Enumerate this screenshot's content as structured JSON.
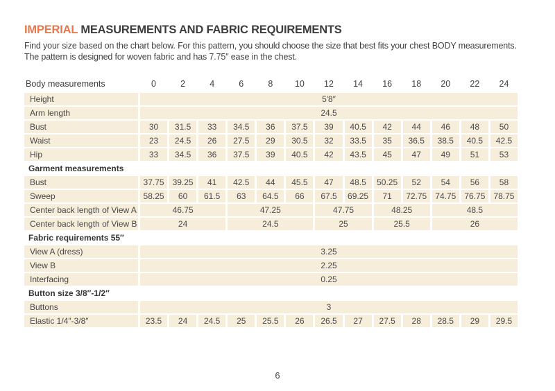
{
  "page": {
    "title_highlight": "IMPERIAL",
    "title_rest": " MEASUREMENTS AND FABRIC REQUIREMENTS",
    "intro_lines": [
      "Find your size based on the chart below. For this pattern, you should choose the size that best fits your chest BODY measurements.",
      "The pattern is designed for woven fabric and has 7.75″ ease in the chest."
    ],
    "page_number": "6"
  },
  "colors": {
    "accent_orange": "#e8794e",
    "cell_beige": "#f6edda",
    "text_dark": "#3d3d3d",
    "text_body": "#4a4a4a"
  },
  "table": {
    "header": {
      "label": "Body measurements",
      "sizes": [
        "0",
        "2",
        "4",
        "6",
        "8",
        "10",
        "12",
        "14",
        "16",
        "18",
        "20",
        "22",
        "24"
      ]
    },
    "rows": [
      {
        "type": "merged",
        "label": "Height",
        "groups": [
          {
            "span": 13,
            "value": "5′8″"
          }
        ]
      },
      {
        "type": "merged",
        "label": "Arm length",
        "groups": [
          {
            "span": 13,
            "value": "24.5"
          }
        ]
      },
      {
        "type": "cells",
        "label": "Bust",
        "values": [
          "30",
          "31.5",
          "33",
          "34.5",
          "36",
          "37.5",
          "39",
          "40.5",
          "42",
          "44",
          "46",
          "48",
          "50"
        ]
      },
      {
        "type": "cells",
        "label": "Waist",
        "values": [
          "23",
          "24.5",
          "26",
          "27.5",
          "29",
          "30.5",
          "32",
          "33.5",
          "35",
          "36.5",
          "38.5",
          "40.5",
          "42.5"
        ]
      },
      {
        "type": "cells",
        "label": "Hip",
        "values": [
          "33",
          "34.5",
          "36",
          "37.5",
          "39",
          "40.5",
          "42",
          "43.5",
          "45",
          "47",
          "49",
          "51",
          "53"
        ]
      },
      {
        "type": "subheader",
        "label": "Garment measurements"
      },
      {
        "type": "cells",
        "label": "Bust",
        "values": [
          "37.75",
          "39.25",
          "41",
          "42.5",
          "44",
          "45.5",
          "47",
          "48.5",
          "50.25",
          "52",
          "54",
          "56",
          "58"
        ]
      },
      {
        "type": "cells",
        "label": "Sweep",
        "values": [
          "58.25",
          "60",
          "61.5",
          "63",
          "64.5",
          "66",
          "67.5",
          "69.25",
          "71",
          "72.75",
          "74.75",
          "76.75",
          "78.75"
        ]
      },
      {
        "type": "merged",
        "label": "Center back length of View A",
        "groups": [
          {
            "span": 3,
            "value": "46.75"
          },
          {
            "span": 3,
            "value": "47.25"
          },
          {
            "span": 2,
            "value": "47.75"
          },
          {
            "span": 2,
            "value": "48.25"
          },
          {
            "span": 3,
            "value": "48.5"
          }
        ]
      },
      {
        "type": "merged",
        "label": "Center back length of View B",
        "groups": [
          {
            "span": 3,
            "value": "24"
          },
          {
            "span": 3,
            "value": "24.5"
          },
          {
            "span": 2,
            "value": "25"
          },
          {
            "span": 2,
            "value": "25.5"
          },
          {
            "span": 3,
            "value": "26"
          }
        ]
      },
      {
        "type": "subheader",
        "label": "Fabric requirements 55″"
      },
      {
        "type": "merged",
        "label": "View A (dress)",
        "groups": [
          {
            "span": 13,
            "value": "3.25"
          }
        ]
      },
      {
        "type": "merged",
        "label": "View B",
        "groups": [
          {
            "span": 13,
            "value": "2.25"
          }
        ]
      },
      {
        "type": "merged",
        "label": "Interfacing",
        "groups": [
          {
            "span": 13,
            "value": "0.25"
          }
        ]
      },
      {
        "type": "subheader",
        "label": "Button size  3/8″-1/2″"
      },
      {
        "type": "merged",
        "label": "Buttons",
        "groups": [
          {
            "span": 13,
            "value": "3"
          }
        ]
      },
      {
        "type": "cells",
        "label": "Elastic 1/4″-3/8″",
        "values": [
          "23.5",
          "24",
          "24.5",
          "25",
          "25.5",
          "26",
          "26.5",
          "27",
          "27.5",
          "28",
          "28.5",
          "29",
          "29.5"
        ]
      }
    ]
  }
}
